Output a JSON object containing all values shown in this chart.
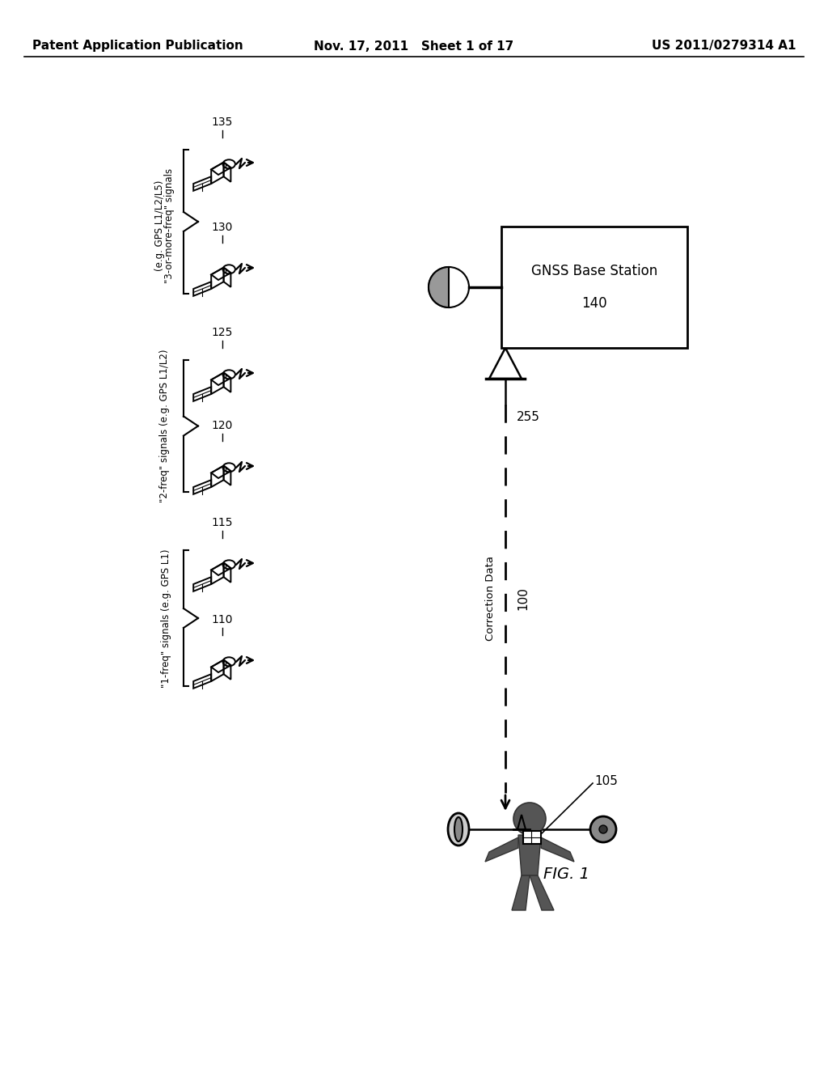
{
  "title_left": "Patent Application Publication",
  "title_mid": "Nov. 17, 2011   Sheet 1 of 17",
  "title_right": "US 2011/0279314 A1",
  "fig_label": "FIG. 1",
  "background_color": "#ffffff",
  "label_135": "135",
  "label_130": "130",
  "label_125": "125",
  "label_120": "120",
  "label_115": "115",
  "label_110": "110",
  "label_140": "140",
  "label_105": "105",
  "label_100": "100",
  "label_255": "255",
  "label_correction": "Correction Data",
  "label_gnss_base_line1": "GNSS Base Station",
  "label_gnss_base_line2": "140",
  "group1_line1": "\"3-or-more-freq\" signals",
  "group1_line2": "(e.g. GPS L1/L2/L5)",
  "group2_line1": "\"2-freq\" signals (e.g. GPS L1/L2)",
  "group3_line1": "\"1-freq\" signals (e.g. GPS L1)"
}
